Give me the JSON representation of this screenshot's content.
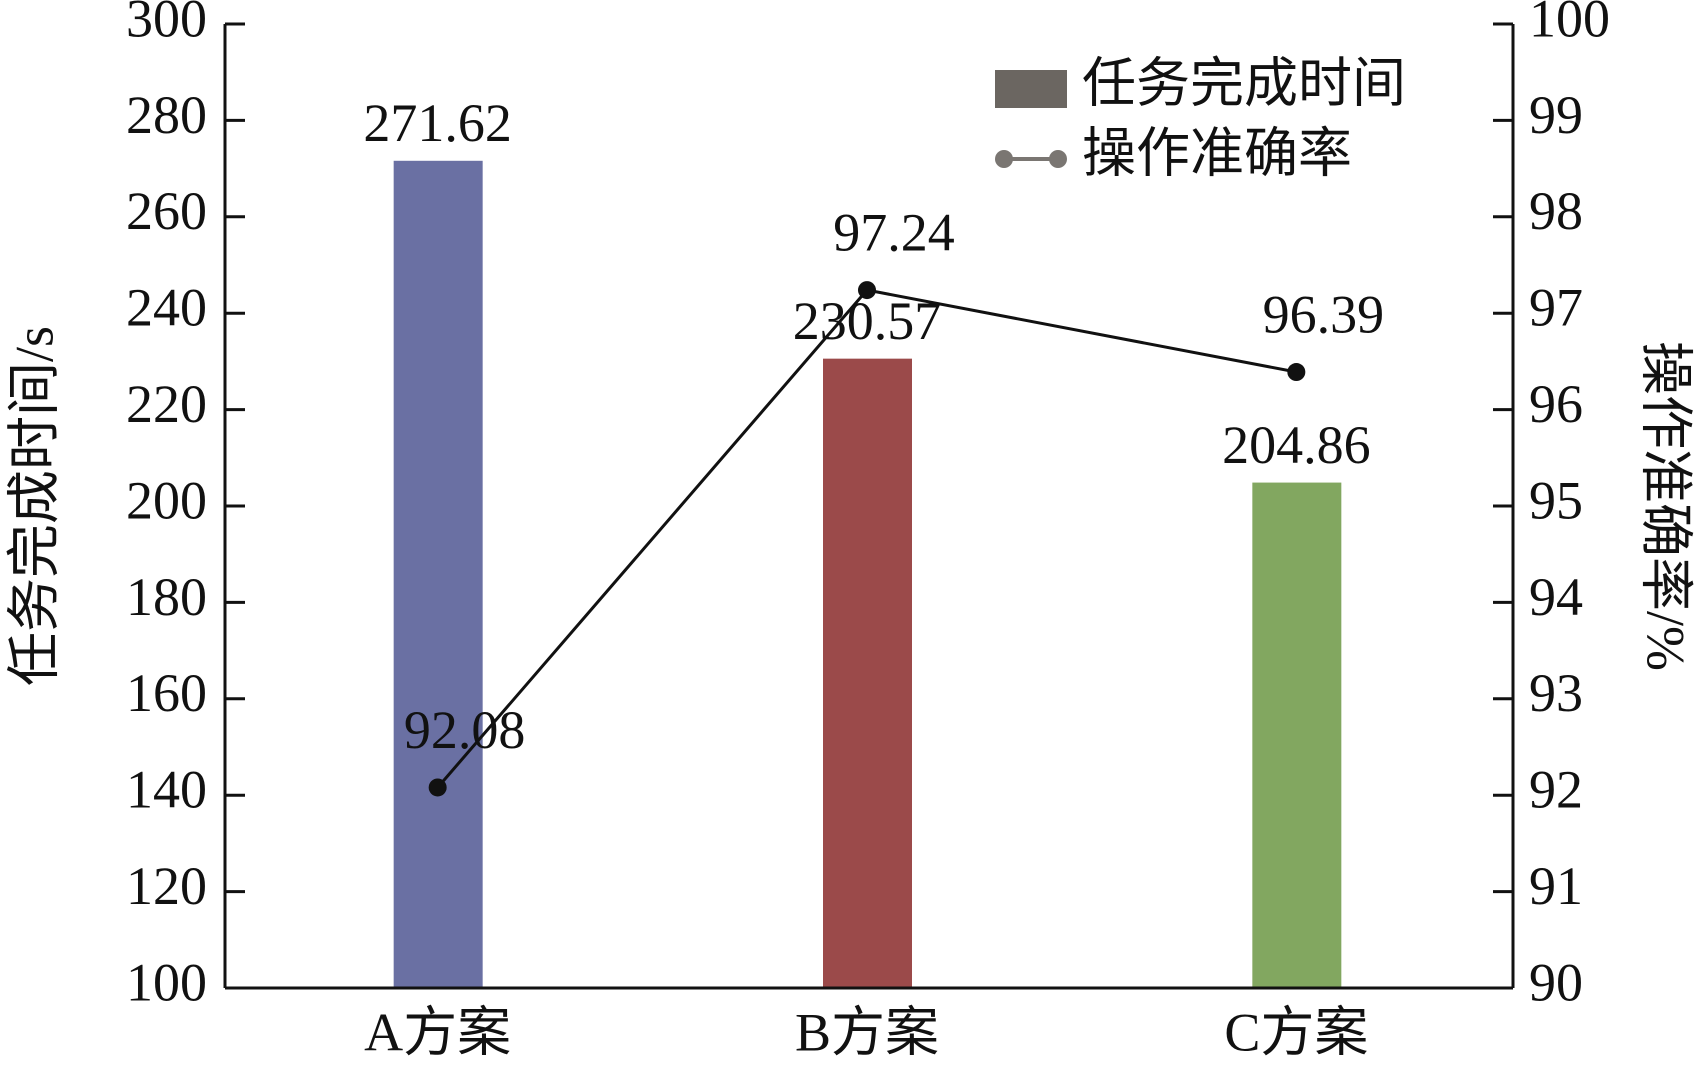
{
  "chart_data": {
    "type": "bar",
    "categories": [
      "A方案",
      "B方案",
      "C方案"
    ],
    "ylabel": "任务完成时间/s",
    "y2label": "操作准确率/%",
    "ylim": [
      100,
      300
    ],
    "yticks": [
      100,
      120,
      140,
      160,
      180,
      200,
      220,
      240,
      260,
      280,
      300
    ],
    "y2lim": [
      90,
      100
    ],
    "y2ticks": [
      90,
      91,
      92,
      93,
      94,
      95,
      96,
      97,
      98,
      99,
      100
    ],
    "series": [
      {
        "name": "任务完成时间",
        "type": "bar",
        "color": "#6b6661",
        "bar_colors": [
          "#6a70a3",
          "#9b4a4a",
          "#82a760"
        ],
        "values": [
          271.62,
          230.57,
          204.86
        ]
      },
      {
        "name": "操作准确率",
        "type": "line",
        "axis": "y2",
        "color": "#111111",
        "legend_color": "#7a7672",
        "values": [
          92.08,
          97.24,
          96.39
        ]
      }
    ]
  }
}
